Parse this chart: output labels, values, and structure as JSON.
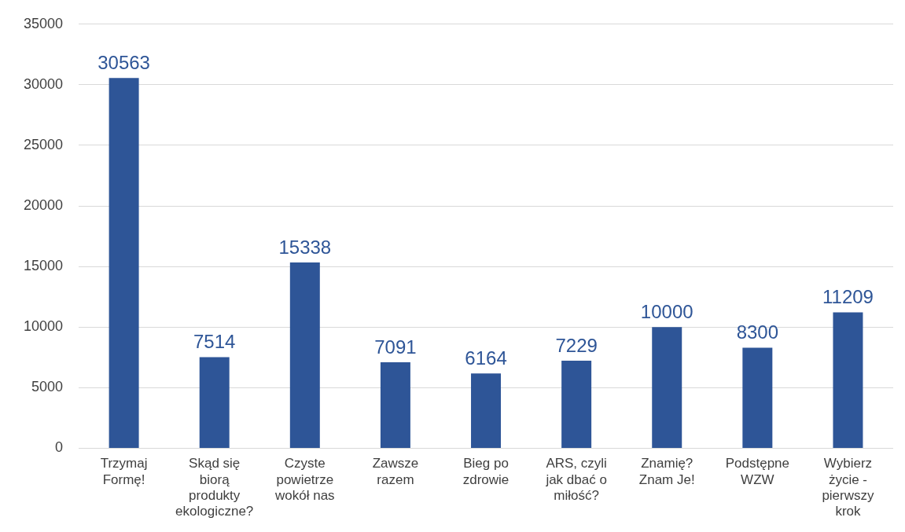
{
  "chart_data": {
    "type": "bar",
    "categories": [
      "Trzymaj Formę!",
      "Skąd się biorą produkty ekologiczne?",
      "Czyste powietrze wokół nas",
      "Zawsze razem",
      "Bieg po zdrowie",
      "ARS, czyli jak dbać o miłość?",
      "Znamię? Znam Je!",
      "Podstępne WZW",
      "Wybierz życie - pierwszy krok"
    ],
    "values": [
      30563,
      7514,
      15338,
      7091,
      6164,
      7229,
      10000,
      8300,
      11209
    ],
    "color": "#2e5597",
    "ylim": [
      0,
      35000
    ],
    "yticks": [
      0,
      5000,
      10000,
      15000,
      20000,
      25000,
      30000,
      35000
    ],
    "grid": "y",
    "data_labels": true,
    "legend": false
  }
}
